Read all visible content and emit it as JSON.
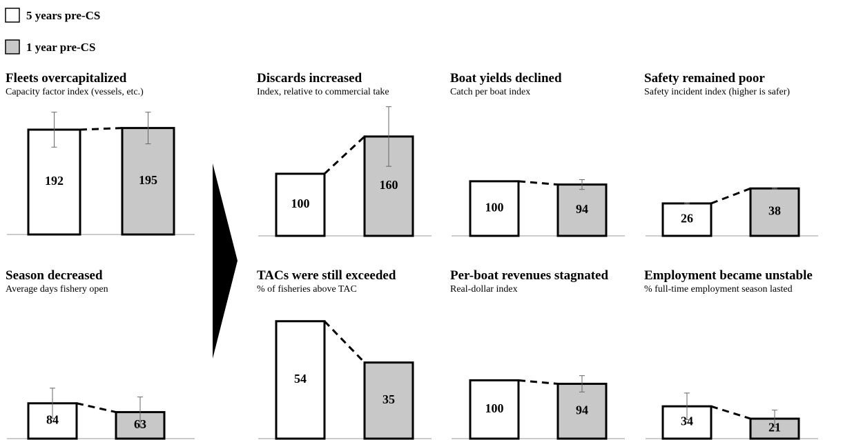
{
  "legend": [
    {
      "name": "5 years pre-CS",
      "color": "#ffffff"
    },
    {
      "name": "1 year pre-CS",
      "color": "#c8c8c8"
    }
  ],
  "chart_data": [
    {
      "type": "bar",
      "title": "Fleets overcapitalized",
      "subtitle": "Capacity factor index (vessels, etc.)",
      "values": [
        192,
        195
      ],
      "errors": [
        32,
        29
      ],
      "ylim": [
        0,
        240
      ]
    },
    {
      "type": "bar",
      "title": "Discards increased",
      "subtitle": "Index, relative to commercial take",
      "values": [
        100,
        160
      ],
      "errors": [
        null,
        48
      ],
      "ylim": [
        0,
        211
      ]
    },
    {
      "type": "bar",
      "title": "Boat yields declined",
      "subtitle": "Catch per boat index",
      "values": [
        100,
        94
      ],
      "errors": [
        null,
        9
      ],
      "ylim": [
        0,
        240
      ]
    },
    {
      "type": "bar",
      "title": "Safety remained poor",
      "subtitle": "Safety incident index (higher is safer)",
      "values": [
        26,
        38
      ],
      "errors": [
        0.5,
        0.5
      ],
      "ylim": [
        0,
        105
      ]
    },
    {
      "type": "bar",
      "title": "Season decreased",
      "subtitle": "Average days fishery open",
      "values": [
        84,
        63
      ],
      "errors": [
        36,
        36
      ],
      "ylim": [
        0,
        305
      ]
    },
    {
      "type": "bar",
      "title": "TACs were still exceeded",
      "subtitle": "% of fisheries above TAC",
      "values": [
        54,
        35
      ],
      "errors": [
        null,
        null
      ],
      "ylim": [
        0,
        59
      ]
    },
    {
      "type": "bar",
      "title": "Per-boat revenues stagnated",
      "subtitle": "Real-dollar index",
      "values": [
        100,
        94
      ],
      "errors": [
        null,
        14
      ],
      "ylim": [
        0,
        220
      ]
    },
    {
      "type": "bar",
      "title": "Employment became unstable",
      "subtitle": "% full-time employment season lasted",
      "values": [
        34,
        21
      ],
      "errors": [
        14,
        9
      ],
      "ylim": [
        0,
        135
      ]
    }
  ]
}
